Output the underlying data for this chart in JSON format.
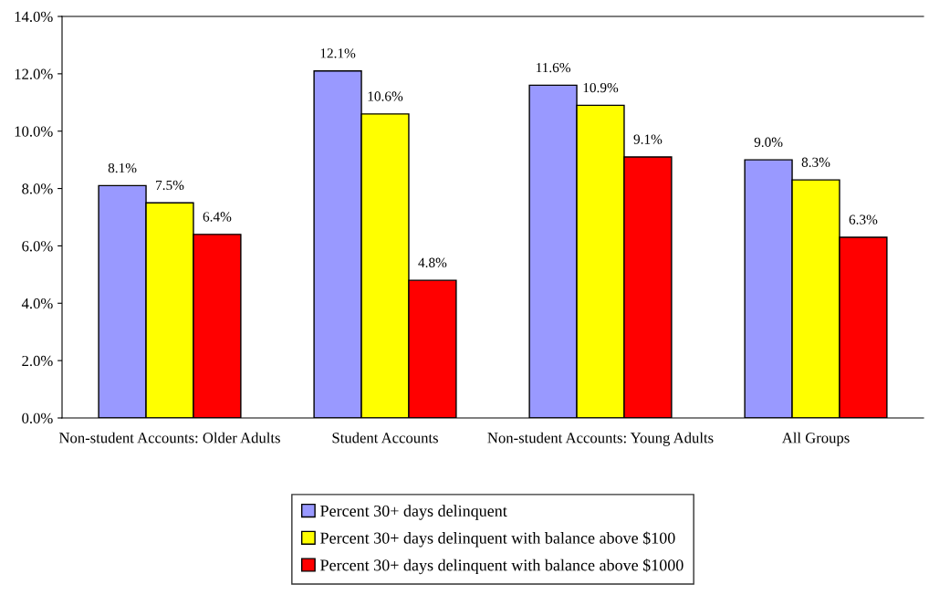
{
  "chart_data": {
    "type": "bar",
    "categories": [
      "Non-student Accounts: Older Adults",
      "Student Accounts",
      "Non-student Accounts: Young Adults",
      "All Groups"
    ],
    "series": [
      {
        "name": "Percent 30+ days delinquent",
        "color": "#9999ff",
        "values": [
          8.1,
          12.1,
          11.6,
          9.0
        ],
        "value_labels": [
          "8.1%",
          "12.1%",
          "11.6%",
          "9.0%"
        ]
      },
      {
        "name": "Percent 30+ days delinquent with balance above $100",
        "color": "#ffff00",
        "values": [
          7.5,
          10.6,
          10.9,
          8.3
        ],
        "value_labels": [
          "7.5%",
          "10.6%",
          "10.9%",
          "8.3%"
        ]
      },
      {
        "name": "Percent 30+ days delinquent with balance above $1000",
        "color": "#ff0000",
        "values": [
          6.4,
          4.8,
          9.1,
          6.3
        ],
        "value_labels": [
          "6.4%",
          "4.8%",
          "9.1%",
          "6.3%"
        ]
      }
    ],
    "ylim": [
      0,
      14
    ],
    "yticks": [
      {
        "value": 0,
        "label": "0.0%"
      },
      {
        "value": 2,
        "label": "2.0%"
      },
      {
        "value": 4,
        "label": "4.0%"
      },
      {
        "value": 6,
        "label": "6.0%"
      },
      {
        "value": 8,
        "label": "8.0%"
      },
      {
        "value": 10,
        "label": "10.0%"
      },
      {
        "value": 12,
        "label": "12.0%"
      },
      {
        "value": 14,
        "label": "14.0%"
      }
    ],
    "grid": false,
    "legend": "bottom"
  }
}
